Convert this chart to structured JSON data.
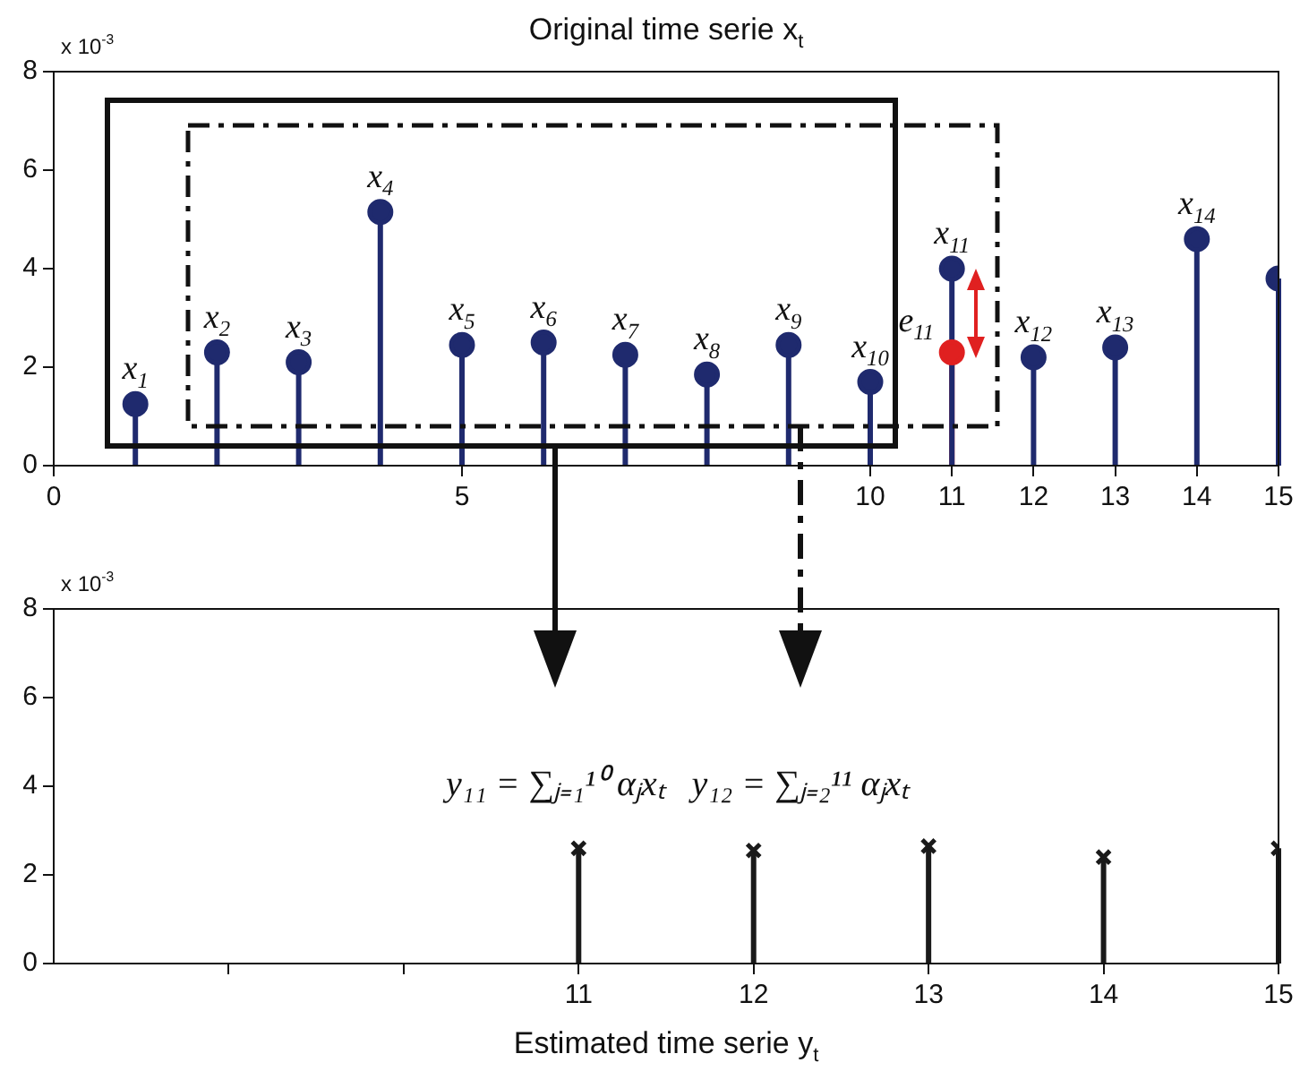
{
  "chart_data": [
    {
      "type": "lollipop",
      "title": "Original time serie x$_{t}$",
      "xlim": [
        0,
        15
      ],
      "xticks": [
        0,
        5,
        10,
        11,
        12,
        13,
        14,
        15
      ],
      "ylim": [
        0,
        8
      ],
      "yticks": [
        0,
        2,
        4,
        6,
        8
      ],
      "grid": false,
      "legend": false,
      "marker": "circle",
      "series": [
        {
          "color": "#1f2a6e",
          "x": [
            1,
            2,
            3,
            4,
            5,
            6,
            7,
            8,
            9,
            10
          ],
          "values": [
            1.25,
            2.3,
            2.1,
            5.15,
            2.45,
            2.5,
            2.25,
            1.85,
            2.45,
            1.7
          ]
        },
        {
          "color": "#1f2a6e",
          "x": [
            11,
            12,
            13,
            14,
            15
          ],
          "values": [
            4.0,
            2.2,
            2.4,
            4.6,
            3.8
          ]
        },
        {
          "color": "#e02020",
          "x": [
            11
          ],
          "values": [
            2.3
          ]
        }
      ],
      "annotations": [
        "x 10$^{-3}$",
        {
          "text": "x$_{1}$",
          "x": 1,
          "y": 1.25
        },
        {
          "text": "x$_{2}$",
          "x": 2,
          "y": 2.3
        },
        {
          "text": "x$_{3}$",
          "x": 3,
          "y": 2.1
        },
        {
          "text": "x$_{4}$",
          "x": 4,
          "y": 5.15
        },
        {
          "text": "x$_{5}$",
          "x": 5,
          "y": 2.45
        },
        {
          "text": "x$_{6}$",
          "x": 6,
          "y": 2.5
        },
        {
          "text": "x$_{7}$",
          "x": 7,
          "y": 2.25
        },
        {
          "text": "x$_{8}$",
          "x": 8,
          "y": 1.85
        },
        {
          "text": "x$_{9}$",
          "x": 9,
          "y": 2.45
        },
        {
          "text": "x$_{10}$",
          "x": 10,
          "y": 1.7
        },
        {
          "text": "x$_{11}$",
          "x": 11,
          "y": 4.0
        },
        {
          "text": "e$_{11}$",
          "x": 11,
          "y": 2.3
        },
        {
          "text": "x$_{12}$",
          "x": 12,
          "y": 2.2
        },
        {
          "text": "x$_{13}$",
          "x": 13,
          "y": 2.4
        },
        {
          "text": "x$_{14}$",
          "x": 14,
          "y": 4.6
        }
      ]
    },
    {
      "type": "lollipop",
      "xlabel": "Estimated time serie y$_{t}$",
      "xlim": [
        8,
        15
      ],
      "xticks": [
        {
          "value": 9,
          "label": null
        },
        {
          "value": 10,
          "label": null
        },
        11,
        12,
        13,
        14,
        15
      ],
      "ylim": [
        0,
        8
      ],
      "yticks": [
        0,
        2,
        4,
        6,
        8
      ],
      "grid": false,
      "legend": false,
      "marker": "cross",
      "series": [
        {
          "color": "#1a1a1a",
          "x": [
            11,
            12,
            13,
            14,
            15
          ],
          "values": [
            2.6,
            2.55,
            2.65,
            2.4,
            2.6
          ]
        }
      ],
      "annotations": [
        "x 10$^{-3}$",
        "y₁₁ = ∑ⱼ₌₁¹⁰ αⱼxₜ",
        "y₁₂ = ∑ⱼ₌₂¹¹ αⱼxₜ"
      ]
    }
  ]
}
